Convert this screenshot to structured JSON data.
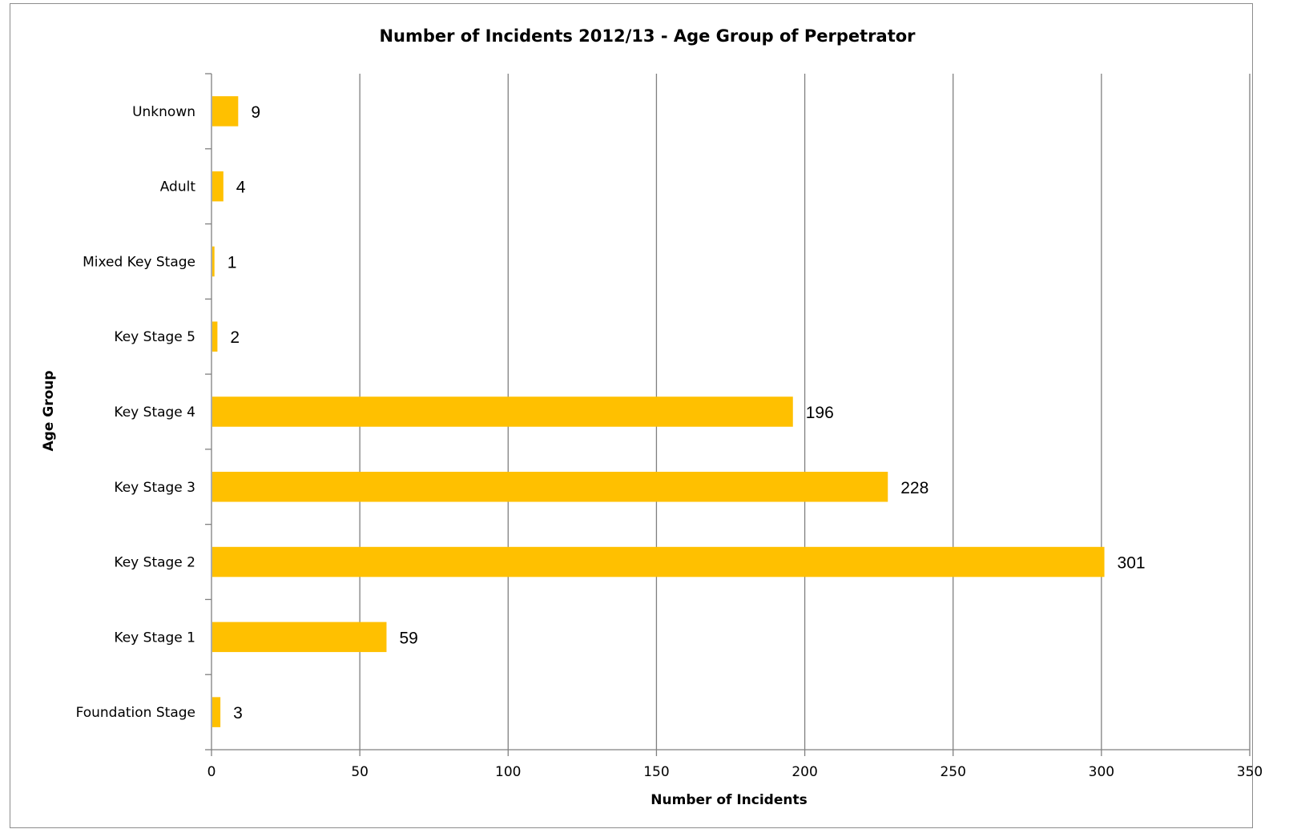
{
  "chart_data": {
    "type": "bar",
    "orientation": "horizontal",
    "title": "Number of Incidents 2012/13 - Age Group of Perpetrator",
    "xlabel": "Number of Incidents",
    "ylabel": "Age Group",
    "categories": [
      "Foundation Stage",
      "Key Stage 1",
      "Key Stage 2",
      "Key Stage 3",
      "Key Stage 4",
      "Key Stage 5",
      "Mixed Key Stage",
      "Adult",
      "Unknown"
    ],
    "values": [
      3,
      59,
      301,
      228,
      196,
      2,
      1,
      4,
      9
    ],
    "xlim": [
      0,
      350
    ],
    "xticks": [
      "0",
      "50",
      "100",
      "150",
      "200",
      "250",
      "300",
      "350"
    ],
    "grid": true,
    "data_labels": true,
    "bar_color": "#FFC000",
    "grid_color": "#808080"
  }
}
